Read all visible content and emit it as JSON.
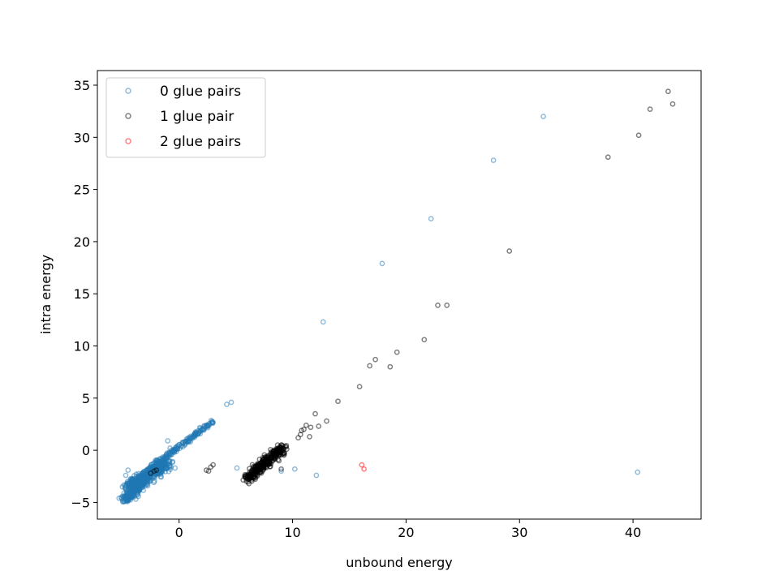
{
  "chart_data": {
    "type": "scatter",
    "title": "",
    "xlabel": "unbound energy",
    "ylabel": "intra energy",
    "xlim": [
      -7.2,
      46.0
    ],
    "ylim": [
      -6.6,
      36.4
    ],
    "xticks": [
      0,
      10,
      20,
      30,
      40
    ],
    "yticks": [
      -5,
      0,
      5,
      10,
      15,
      20,
      25,
      30,
      35
    ],
    "grid": false,
    "legend_position": "top-left",
    "series": [
      {
        "name": "0 glue pairs",
        "color": "#1f77b4",
        "opacity": 0.5,
        "clusters": [
          {
            "kind": "line",
            "from": [
              -4.8,
              -4.8
            ],
            "to": [
              -1.6,
              -1.2
            ],
            "spread": 0.45,
            "count": 420
          },
          {
            "kind": "line",
            "from": [
              -4.5,
              -3.6
            ],
            "to": [
              -1.0,
              -1.2
            ],
            "spread": 0.6,
            "count": 380
          },
          {
            "kind": "line",
            "from": [
              -1.5,
              -0.9
            ],
            "to": [
              3.0,
              2.8
            ],
            "spread": 0.2,
            "count": 140
          }
        ],
        "points": [
          [
            4.2,
            4.4
          ],
          [
            4.6,
            4.6
          ],
          [
            5.1,
            -1.7
          ],
          [
            10.2,
            -1.8
          ],
          [
            12.1,
            -2.4
          ],
          [
            9.0,
            -2.0
          ],
          [
            12.7,
            12.3
          ],
          [
            17.9,
            17.9
          ],
          [
            22.2,
            22.2
          ],
          [
            27.7,
            27.8
          ],
          [
            32.1,
            32.0
          ],
          [
            40.4,
            -2.1
          ],
          [
            -1.0,
            0.9
          ],
          [
            0.5,
            0.5
          ],
          [
            -0.8,
            0.2
          ],
          [
            -4.3,
            -4.3
          ],
          [
            -4.7,
            -2.4
          ],
          [
            -4.5,
            -1.9
          ],
          [
            -1.5,
            -2.1
          ]
        ]
      },
      {
        "name": "1 glue pair",
        "color": "#000000",
        "opacity": 0.5,
        "clusters": [
          {
            "kind": "line",
            "from": [
              6.0,
              -2.7
            ],
            "to": [
              9.2,
              0.3
            ],
            "spread": 0.5,
            "count": 320
          }
        ],
        "points": [
          [
            -2.5,
            -2.2
          ],
          [
            -2.2,
            -2.0
          ],
          [
            -2.0,
            -1.9
          ],
          [
            2.4,
            -1.9
          ],
          [
            2.6,
            -2.0
          ],
          [
            2.8,
            -1.6
          ],
          [
            3.0,
            -1.4
          ],
          [
            10.5,
            1.2
          ],
          [
            10.7,
            1.5
          ],
          [
            11.0,
            2.0
          ],
          [
            11.2,
            2.4
          ],
          [
            11.5,
            1.3
          ],
          [
            12.0,
            3.5
          ],
          [
            12.3,
            2.3
          ],
          [
            13.0,
            2.8
          ],
          [
            10.8,
            1.9
          ],
          [
            11.6,
            2.2
          ],
          [
            14.0,
            4.7
          ],
          [
            15.9,
            6.1
          ],
          [
            16.8,
            8.1
          ],
          [
            17.3,
            8.7
          ],
          [
            18.6,
            8.0
          ],
          [
            19.2,
            9.4
          ],
          [
            21.6,
            10.6
          ],
          [
            22.8,
            13.9
          ],
          [
            23.6,
            13.9
          ],
          [
            29.1,
            19.1
          ],
          [
            37.8,
            28.1
          ],
          [
            40.5,
            30.2
          ],
          [
            41.5,
            32.7
          ],
          [
            43.1,
            34.4
          ],
          [
            43.5,
            33.2
          ],
          [
            9.0,
            -1.8
          ],
          [
            8.8,
            -1.0
          ],
          [
            6.3,
            -2.5
          ]
        ]
      },
      {
        "name": "2 glue pairs",
        "color": "#ff0000",
        "opacity": 0.5,
        "points": [
          [
            16.1,
            -1.4
          ],
          [
            16.3,
            -1.8
          ]
        ]
      }
    ]
  }
}
